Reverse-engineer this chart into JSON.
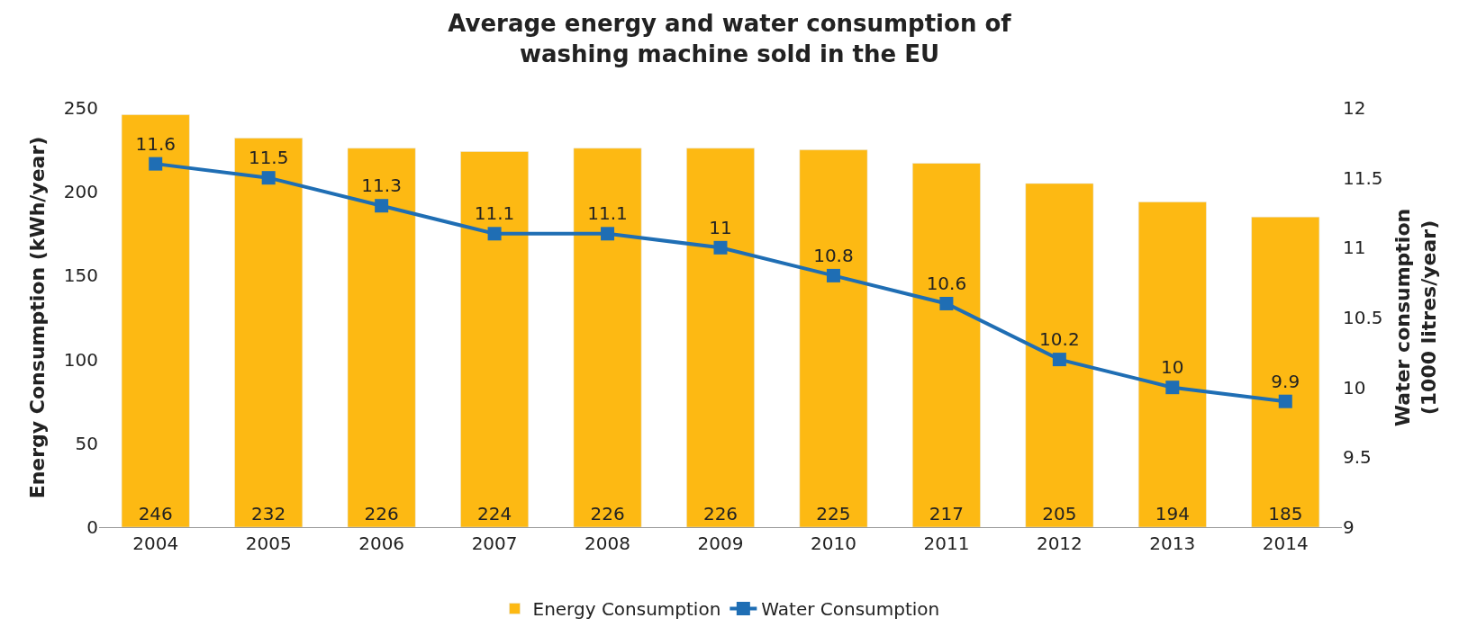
{
  "chart_data": {
    "type": "bar",
    "title": "Average energy and water consumption of\nwashing machine sold in the EU",
    "categories": [
      "2004",
      "2005",
      "2006",
      "2007",
      "2008",
      "2009",
      "2010",
      "2011",
      "2012",
      "2013",
      "2014"
    ],
    "series": [
      {
        "name": "Energy Consumption",
        "color": "#fdb913",
        "values": [
          246,
          232,
          226,
          224,
          226,
          226,
          225,
          217,
          205,
          194,
          185
        ]
      },
      {
        "name": "Water Consumption",
        "type": "line",
        "axis": "y2",
        "color": "#1f6eb4",
        "marker": "square",
        "line_style": "solid",
        "values": [
          11.6,
          11.5,
          11.3,
          11.1,
          11.1,
          11,
          10.8,
          10.6,
          10.2,
          10,
          9.9
        ]
      }
    ],
    "ylabel": "Energy Consumption (kWh/year)",
    "y2label": "Water consumption\n(1000 litres/year)",
    "ylim": [
      0,
      250
    ],
    "yticks": [
      0,
      50,
      100,
      150,
      200,
      250
    ],
    "y2lim": [
      9,
      12
    ],
    "y2ticks": [
      9,
      9.5,
      10,
      10.5,
      11,
      11.5,
      12
    ],
    "data_labels": true,
    "grid": false,
    "legend": "bottom"
  }
}
